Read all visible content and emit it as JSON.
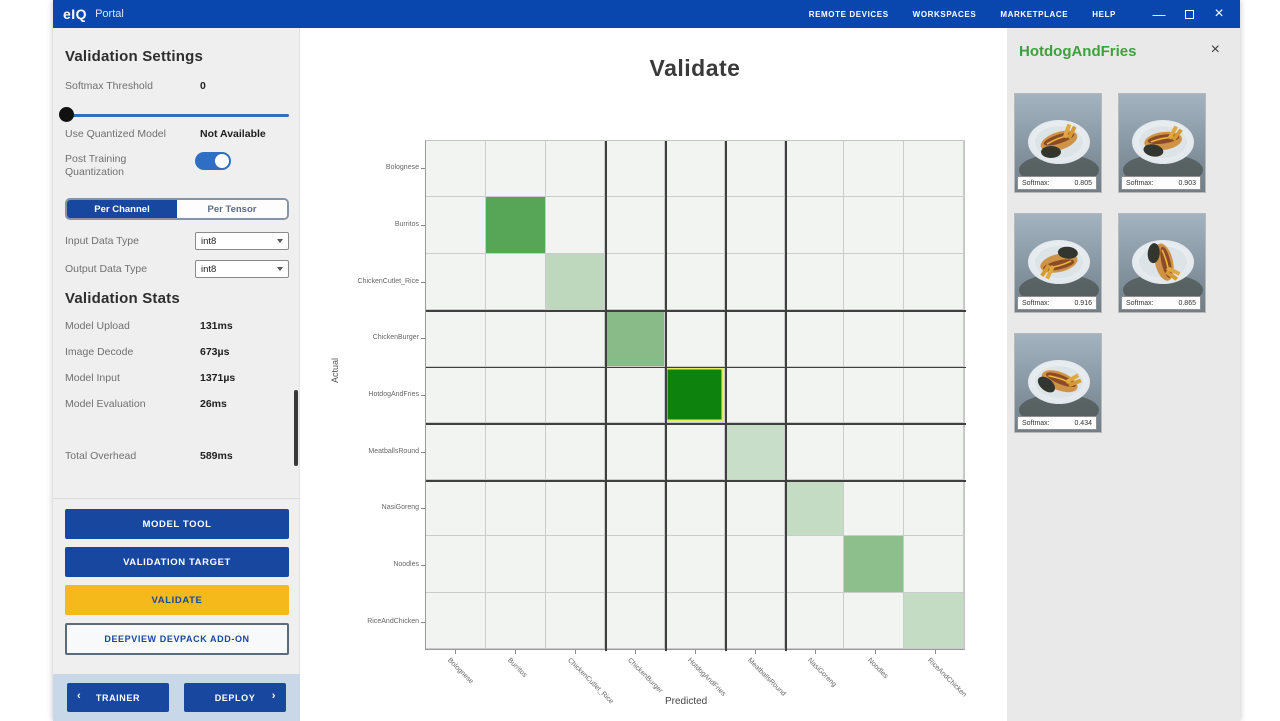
{
  "window": {
    "titlebar": {
      "logo": "eIQ",
      "logo_suffix": "Portal",
      "menu": [
        {
          "name": "remote-devices",
          "label": "REMOTE DEVICES"
        },
        {
          "name": "workspaces",
          "label": "WORKSPACES"
        },
        {
          "name": "marketplace",
          "label": "MARKETPLACE"
        },
        {
          "name": "help",
          "label": "HELP"
        }
      ],
      "controls": {
        "minimize": "—",
        "close": "×"
      }
    }
  },
  "sidebar": {
    "settings": {
      "title": "Validation Settings",
      "softmax_label": "Softmax Threshold",
      "softmax_value": "0",
      "quantized_label": "Use Quantized Model",
      "quantized_value": "Not Available",
      "ptq_label": "Post Training Quantization",
      "segmented": {
        "left": "Per Channel",
        "right": "Per Tensor"
      },
      "input_type_label": "Input Data Type",
      "input_type_value": "int8",
      "output_type_label": "Output Data Type",
      "output_type_value": "int8"
    },
    "stats": {
      "title": "Validation Stats",
      "rows": [
        {
          "label": "Model Upload",
          "value": "131ms"
        },
        {
          "label": "Image Decode",
          "value": "673µs"
        },
        {
          "label": "Model Input",
          "value": "1371µs"
        },
        {
          "label": "Model Evaluation",
          "value": "26ms"
        }
      ],
      "total": {
        "label": "Total Overhead",
        "value": "589ms"
      }
    },
    "buttons": {
      "model_tool": "MODEL TOOL",
      "validation_target": "VALIDATION TARGET",
      "validate": "VALIDATE",
      "devpack": "DEEPVIEW DEVPACK ADD-ON"
    },
    "nav": {
      "trainer": "TRAINER",
      "deploy": "DEPLOY",
      "prev_icon": "‹",
      "next_icon": "›"
    }
  },
  "main": {
    "title": "Validate"
  },
  "chart_data": {
    "type": "heatmap",
    "title": "Validate",
    "xlabel": "Predicted",
    "ylabel": "Actual",
    "categories": [
      "Bolognese",
      "Burritos",
      "ChickenCutlet_Rice",
      "ChickenBurger",
      "HotdogAndFries",
      "MeatballsRound",
      "NasiGoreng",
      "Noodles",
      "RiceAndChicken"
    ],
    "grid_size": 9,
    "cell_bg": "#f2f4f2",
    "grid_line": "#cbcbcb",
    "dark_line": "#3f3f3f",
    "dark_boundaries": [
      3,
      4,
      5,
      6
    ],
    "diagonal_cells": [
      {
        "row": 0,
        "col": 0,
        "color": null,
        "selected": false
      },
      {
        "row": 1,
        "col": 1,
        "color": "#57a557",
        "selected": false
      },
      {
        "row": 2,
        "col": 2,
        "color": "#bdd8bd",
        "selected": false
      },
      {
        "row": 3,
        "col": 3,
        "color": "#88bb88",
        "selected": false
      },
      {
        "row": 4,
        "col": 4,
        "color": "#0d830d",
        "selected": true
      },
      {
        "row": 5,
        "col": 5,
        "color": "#c8dec8",
        "selected": false
      },
      {
        "row": 6,
        "col": 6,
        "color": "#c4dcc4",
        "selected": false
      },
      {
        "row": 7,
        "col": 7,
        "color": "#8dbf8d",
        "selected": false
      },
      {
        "row": 8,
        "col": 8,
        "color": "#c3dcc3",
        "selected": false
      }
    ],
    "selected_cell_border": "#e3f05e",
    "legend_position": "none",
    "grid": true
  },
  "right_panel": {
    "title": "HotdogAndFries",
    "close_icon": "×",
    "cards": [
      {
        "caption_label": "Softmax:",
        "value": "0.805",
        "photo_rotate": 0
      },
      {
        "caption_label": "Softmax:",
        "value": "0.903",
        "photo_rotate": 10
      },
      {
        "caption_label": "Softmax:",
        "value": "0.916",
        "photo_rotate": 185
      },
      {
        "caption_label": "Softmax:",
        "value": "0.865",
        "photo_rotate": 95
      },
      {
        "caption_label": "Softmax:",
        "value": "0.434",
        "photo_rotate": 40
      }
    ]
  },
  "colors": {
    "titlebar": "#0947ae",
    "accent_blue": "#17479e",
    "validate_yellow": "#f5b91c",
    "panel_title_green": "#3aa23a",
    "sidebar_bg": "#efefef",
    "right_panel_bg": "#e9e9e9",
    "nav_strip": "#c9d8e8",
    "selected_cell_green": "#0d830d"
  }
}
